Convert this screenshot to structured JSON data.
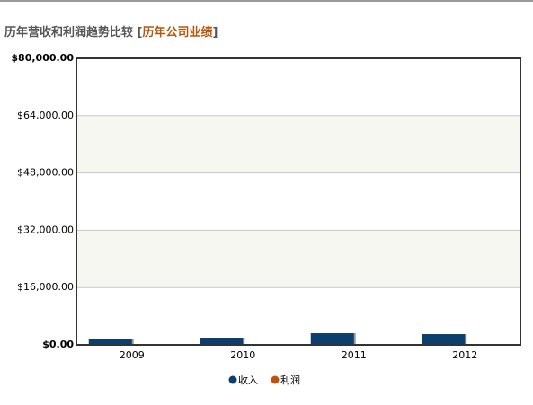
{
  "chart_data": {
    "type": "bar",
    "title": "历年营收和利润趋势比较",
    "subtitle": "历年公司业绩",
    "categories": [
      "2009",
      "2010",
      "2011",
      "2012"
    ],
    "series": [
      {
        "name": "收入",
        "color": "#0d3f6e",
        "values": [
          1750,
          2000,
          3250,
          3000
        ]
      },
      {
        "name": "利润",
        "color": "#c0530a",
        "values": [
          0,
          0,
          0,
          0
        ]
      }
    ],
    "ylim": [
      0,
      80000
    ],
    "yticks": [
      {
        "value": 0,
        "label": "$0.00"
      },
      {
        "value": 16000,
        "label": "$16,000.00"
      },
      {
        "value": 32000,
        "label": "$32,000.00"
      },
      {
        "value": 48000,
        "label": "$48,000.00"
      },
      {
        "value": 64000,
        "label": "$64,000.00"
      },
      {
        "value": 80000,
        "label": "$80,000.00"
      }
    ],
    "grid": true
  }
}
